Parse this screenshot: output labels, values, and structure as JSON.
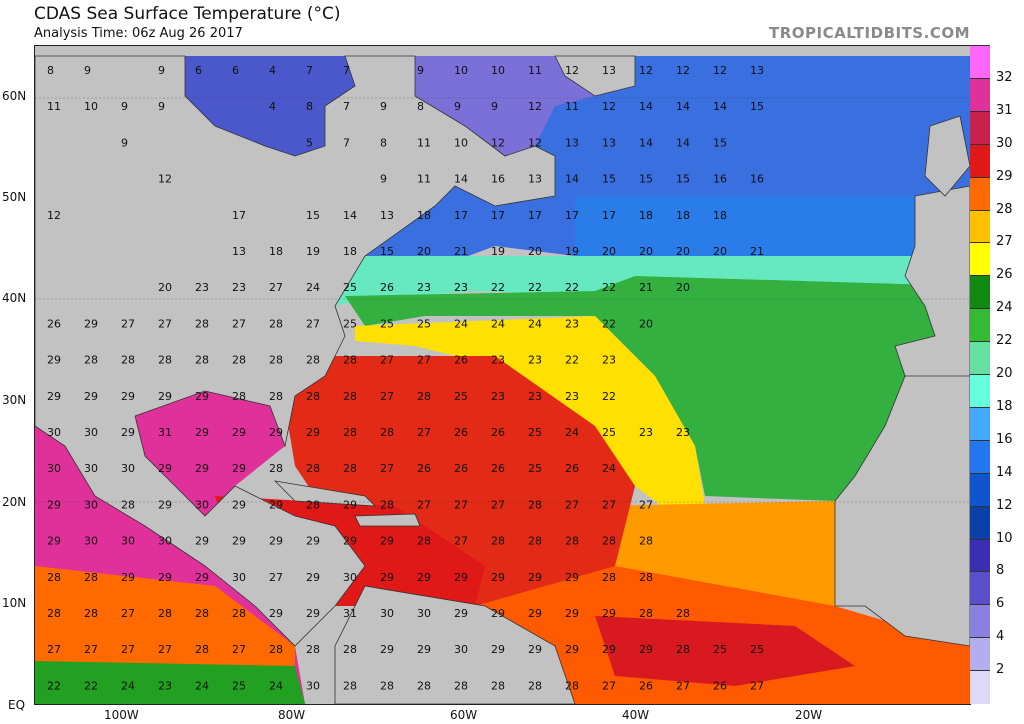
{
  "title": "CDAS Sea Surface Temperature (°C)",
  "subtitle": "Analysis Time: 06z Aug 26 2017",
  "brand": "TROPICALTIDBITS.COM",
  "lat_labels": [
    "60N",
    "50N",
    "40N",
    "30N",
    "20N",
    "10N",
    "EQ"
  ],
  "lon_labels": [
    "100W",
    "80W",
    "60W",
    "40W",
    "20W"
  ],
  "colorbar": {
    "labels": [
      "32",
      "31",
      "30",
      "29",
      "28",
      "27",
      "26",
      "24",
      "22",
      "20",
      "18",
      "16",
      "14",
      "12",
      "10",
      "8",
      "6",
      "4",
      "2"
    ],
    "colors": [
      "#ff66ff",
      "#e0309a",
      "#c8204c",
      "#e01818",
      "#ff6a00",
      "#ffc000",
      "#ffff00",
      "#118811",
      "#33bb33",
      "#66e0a0",
      "#66ffdd",
      "#44aaff",
      "#2277ee",
      "#1155cc",
      "#0a40a8",
      "#3a2fb0",
      "#5a4fc8",
      "#8a80e0",
      "#b4aef0",
      "#dcdaf8"
    ]
  },
  "colors": {
    "land": "#c2c2c2",
    "warmest": "#e0309a",
    "hot": "#e01818",
    "orange": "#ff6a00",
    "yellow": "#ffff00",
    "green": "#22a022",
    "aqua": "#66e8c0",
    "blue": "#2a6fe0",
    "purple": "#5a4fc8"
  },
  "sst_values": [
    [
      "8",
      "9",
      "",
      "9",
      "6",
      "6",
      "4",
      "7",
      "7",
      "",
      "9",
      "10",
      "10",
      "11",
      "12",
      "13",
      "12",
      "12",
      "12",
      "13"
    ],
    [
      "11",
      "10",
      "9",
      "9",
      "",
      "",
      "4",
      "8",
      "7",
      "9",
      "8",
      "9",
      "9",
      "12",
      "11",
      "12",
      "14",
      "14",
      "14",
      "15"
    ],
    [
      "",
      "",
      "9",
      "",
      "",
      "",
      "",
      "5",
      "7",
      "8",
      "11",
      "10",
      "12",
      "12",
      "13",
      "13",
      "14",
      "14",
      "15",
      ""
    ],
    [
      "",
      "",
      "",
      "12",
      "",
      "",
      "",
      "",
      "",
      "9",
      "11",
      "14",
      "16",
      "13",
      "14",
      "15",
      "15",
      "15",
      "16",
      "16"
    ],
    [
      "12",
      "",
      "",
      "",
      "",
      "17",
      "",
      "15",
      "14",
      "13",
      "18",
      "17",
      "17",
      "17",
      "17",
      "17",
      "18",
      "18",
      "18",
      ""
    ],
    [
      "",
      "",
      "",
      "",
      "",
      "13",
      "18",
      "19",
      "18",
      "15",
      "20",
      "21",
      "19",
      "20",
      "19",
      "20",
      "20",
      "20",
      "20",
      "21"
    ],
    [
      "",
      "",
      "",
      "20",
      "23",
      "23",
      "27",
      "24",
      "25",
      "26",
      "23",
      "23",
      "22",
      "22",
      "22",
      "22",
      "21",
      "20",
      "",
      ""
    ],
    [
      "26",
      "29",
      "27",
      "27",
      "28",
      "27",
      "28",
      "27",
      "25",
      "25",
      "25",
      "24",
      "24",
      "24",
      "23",
      "22",
      "20",
      "",
      "",
      ""
    ],
    [
      "29",
      "28",
      "28",
      "28",
      "28",
      "28",
      "28",
      "28",
      "28",
      "27",
      "27",
      "26",
      "23",
      "23",
      "22",
      "23",
      "",
      "",
      "",
      ""
    ],
    [
      "29",
      "29",
      "29",
      "29",
      "29",
      "28",
      "28",
      "28",
      "28",
      "27",
      "28",
      "25",
      "23",
      "23",
      "23",
      "22",
      "",
      "",
      "",
      ""
    ],
    [
      "30",
      "30",
      "29",
      "31",
      "29",
      "29",
      "29",
      "29",
      "28",
      "28",
      "27",
      "26",
      "26",
      "25",
      "24",
      "25",
      "23",
      "23",
      "",
      ""
    ],
    [
      "30",
      "30",
      "30",
      "29",
      "29",
      "29",
      "28",
      "28",
      "28",
      "27",
      "26",
      "26",
      "26",
      "25",
      "26",
      "24",
      "",
      "",
      "",
      ""
    ],
    [
      "29",
      "30",
      "28",
      "29",
      "30",
      "29",
      "29",
      "28",
      "29",
      "28",
      "27",
      "27",
      "27",
      "28",
      "27",
      "27",
      "27",
      "",
      "",
      ""
    ],
    [
      "29",
      "30",
      "30",
      "30",
      "29",
      "29",
      "29",
      "29",
      "29",
      "29",
      "28",
      "27",
      "28",
      "28",
      "28",
      "28",
      "28",
      "",
      "",
      ""
    ],
    [
      "28",
      "28",
      "29",
      "29",
      "29",
      "30",
      "27",
      "29",
      "30",
      "29",
      "29",
      "29",
      "29",
      "29",
      "29",
      "28",
      "28",
      "",
      "",
      ""
    ],
    [
      "28",
      "28",
      "27",
      "28",
      "28",
      "28",
      "29",
      "29",
      "31",
      "30",
      "30",
      "29",
      "29",
      "29",
      "29",
      "29",
      "28",
      "28",
      "",
      ""
    ],
    [
      "27",
      "27",
      "27",
      "27",
      "28",
      "27",
      "28",
      "28",
      "28",
      "29",
      "29",
      "30",
      "29",
      "29",
      "29",
      "29",
      "29",
      "28",
      "25",
      "25"
    ],
    [
      "22",
      "22",
      "24",
      "23",
      "24",
      "25",
      "24",
      "30",
      "28",
      "28",
      "28",
      "28",
      "28",
      "28",
      "28",
      "27",
      "26",
      "27",
      "26",
      "27"
    ]
  ]
}
